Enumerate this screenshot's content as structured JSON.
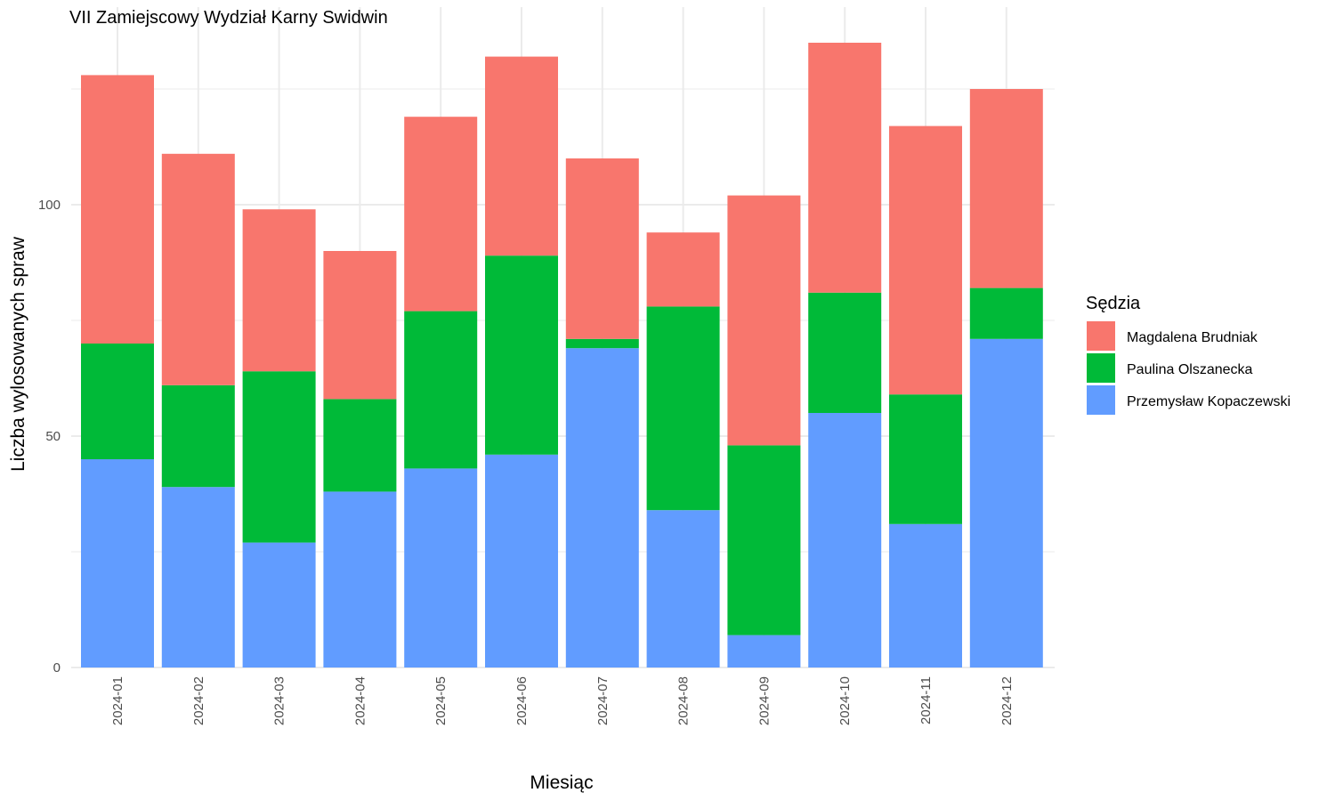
{
  "chart_data": {
    "type": "bar",
    "stacked": true,
    "title": "VII Zamiejscowy Wydział Karny Swidwin",
    "xlabel": "Miesiąc",
    "ylabel": "Liczba wylosowanych spraw",
    "ylim": [
      0,
      141
    ],
    "yticks": [
      0,
      50,
      100
    ],
    "grid": true,
    "legend_position": "right",
    "legend_title": "Sędzia",
    "categories": [
      "2024-01",
      "2024-02",
      "2024-03",
      "2024-04",
      "2024-05",
      "2024-06",
      "2024-07",
      "2024-08",
      "2024-09",
      "2024-10",
      "2024-11",
      "2024-12"
    ],
    "series": [
      {
        "name": "Przemysław Kopaczewski",
        "color": "#619CFF",
        "values": [
          45,
          39,
          27,
          38,
          43,
          46,
          69,
          34,
          7,
          55,
          31,
          71
        ]
      },
      {
        "name": "Paulina Olszanecka",
        "color": "#00BA38",
        "values": [
          25,
          22,
          37,
          20,
          34,
          43,
          2,
          44,
          41,
          26,
          28,
          11
        ]
      },
      {
        "name": "Magdalena Brudniak",
        "color": "#F8766D",
        "values": [
          58,
          50,
          35,
          32,
          42,
          43,
          39,
          16,
          54,
          54,
          58,
          43
        ]
      }
    ],
    "legend_order": [
      "Magdalena Brudniak",
      "Paulina Olszanecka",
      "Przemysław Kopaczewski"
    ]
  }
}
